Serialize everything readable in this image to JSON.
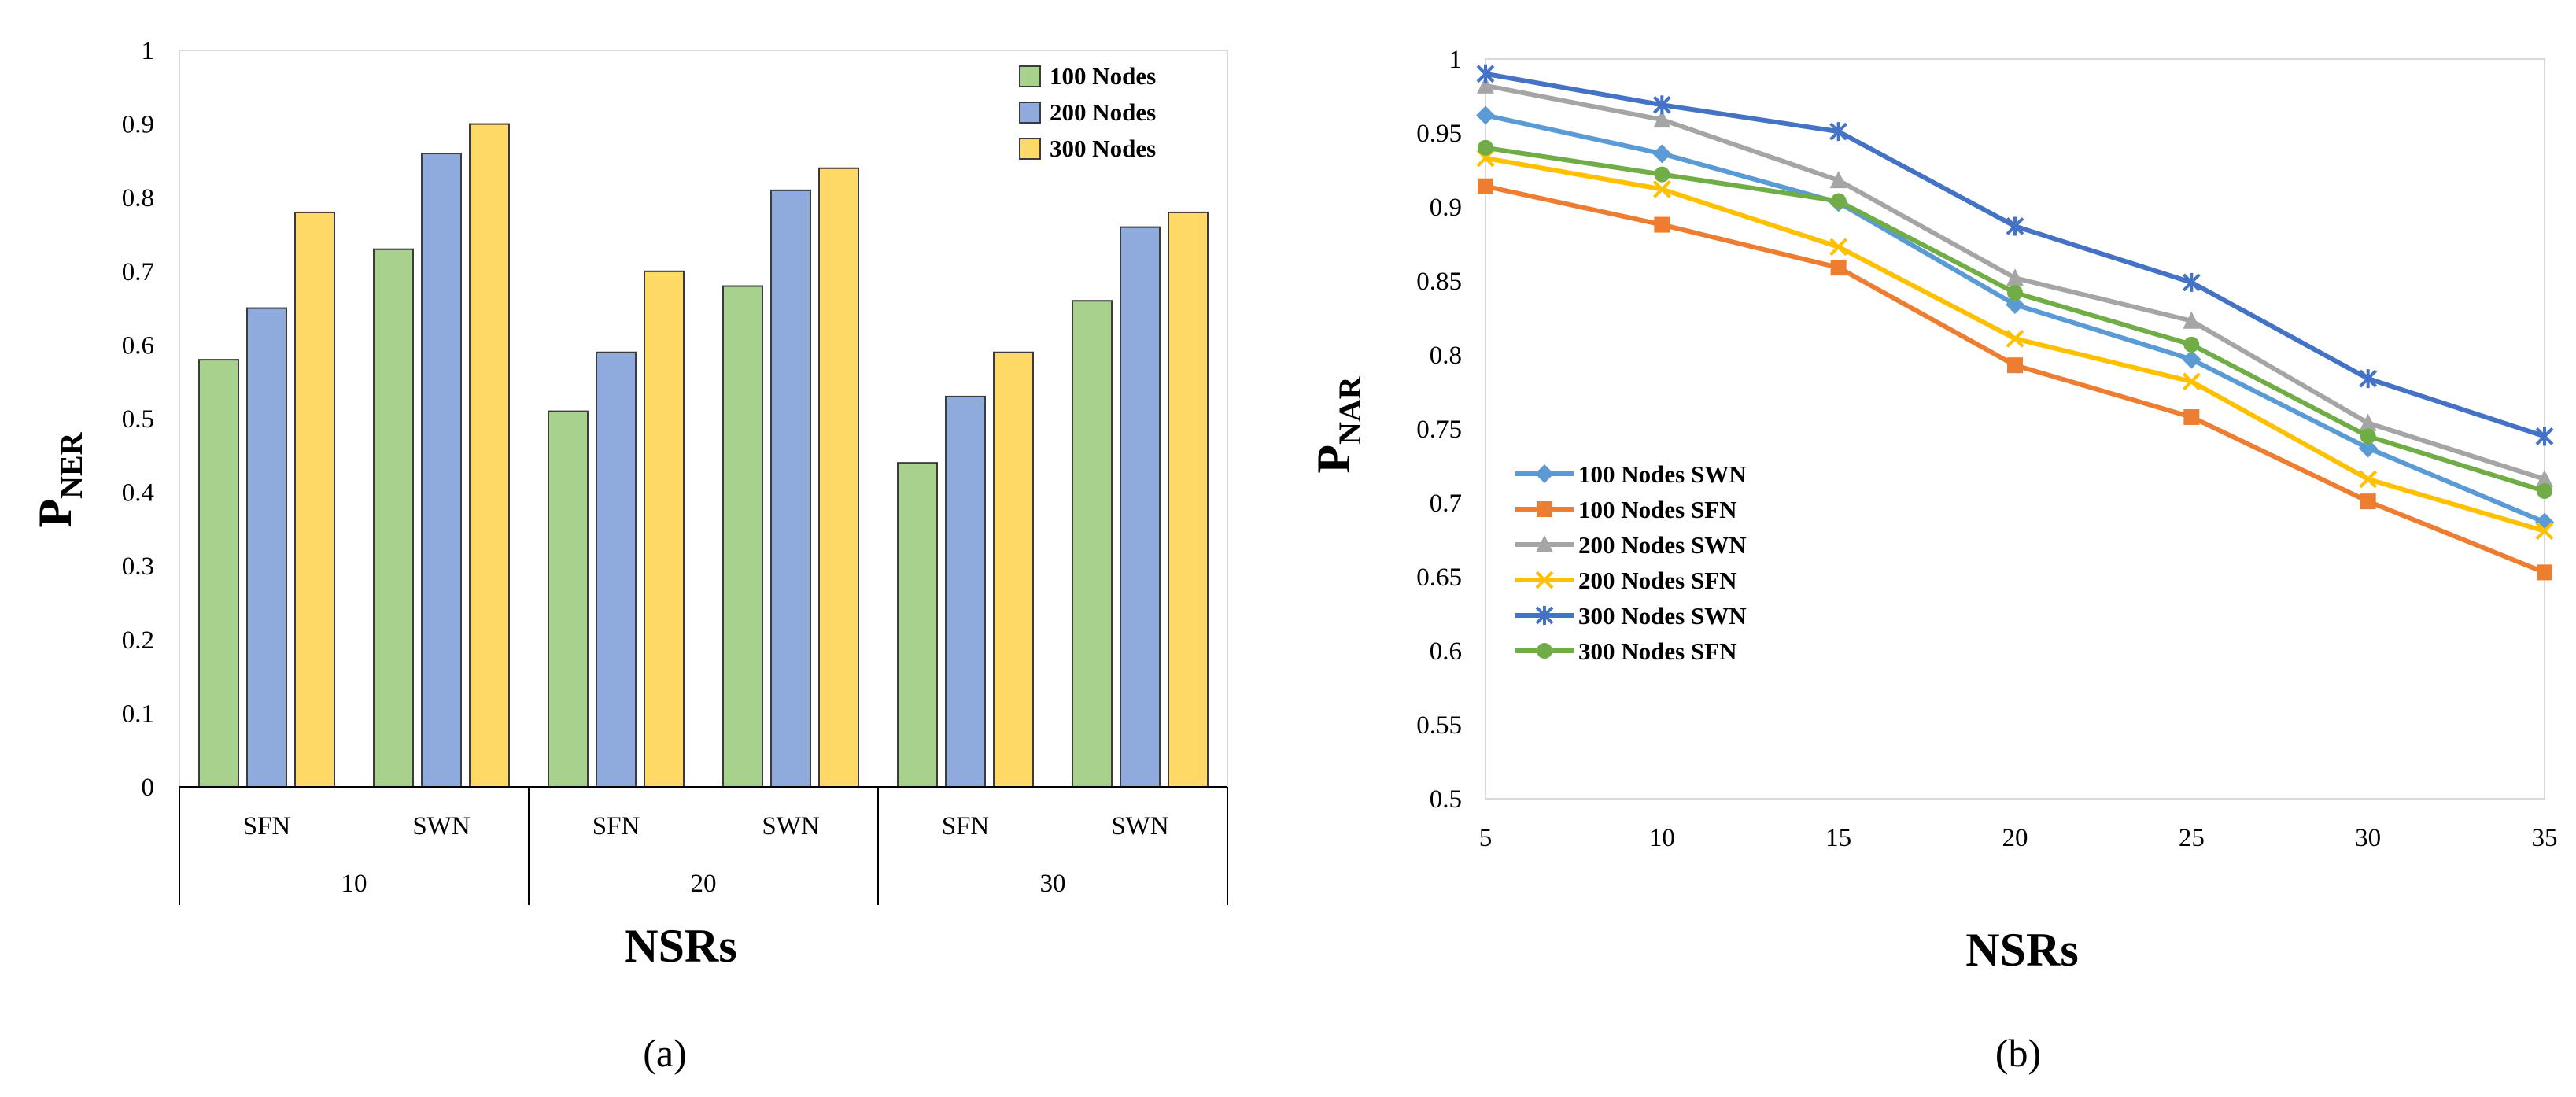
{
  "chart_data": [
    {
      "panel_label": "(a)",
      "type": "bar",
      "groups": [
        "10",
        "20",
        "30"
      ],
      "subcategories": [
        "SFN",
        "SWN",
        "SFN",
        "SWN",
        "SFN",
        "SWN"
      ],
      "series": [
        {
          "name": "100 Nodes",
          "color": "#A9D18E",
          "values": [
            0.58,
            0.73,
            0.51,
            0.68,
            0.44,
            0.66
          ]
        },
        {
          "name": "200 Nodes",
          "color": "#8FAADC",
          "values": [
            0.65,
            0.86,
            0.59,
            0.81,
            0.53,
            0.76
          ]
        },
        {
          "name": "300 Nodes",
          "color": "#FFD966",
          "values": [
            0.78,
            0.9,
            0.7,
            0.84,
            0.59,
            0.78
          ]
        }
      ],
      "ylabel_main": "P",
      "ylabel_sub": "NER",
      "xlabel": "NSRs",
      "ylim": [
        0,
        1
      ],
      "yticks": [
        "0",
        "0.1",
        "0.2",
        "0.3",
        "0.4",
        "0.5",
        "0.6",
        "0.7",
        "0.8",
        "0.9",
        "1"
      ],
      "legend_position": "top-right"
    },
    {
      "panel_label": "(b)",
      "type": "line",
      "x": [
        5,
        10,
        15,
        20,
        25,
        30,
        35
      ],
      "xticks": [
        "5",
        "10",
        "15",
        "20",
        "25",
        "30",
        "35"
      ],
      "series": [
        {
          "name": "100 Nodes SWN",
          "color": "#5B9BD5",
          "marker": "diamond",
          "values": [
            0.962,
            0.936,
            0.903,
            0.834,
            0.797,
            0.737,
            0.687
          ]
        },
        {
          "name": "100 Nodes SFN",
          "color": "#ED7D31",
          "marker": "square",
          "values": [
            0.914,
            0.888,
            0.859,
            0.793,
            0.758,
            0.701,
            0.653
          ]
        },
        {
          "name": "200 Nodes SWN",
          "color": "#A5A5A5",
          "marker": "triangle",
          "values": [
            0.982,
            0.959,
            0.918,
            0.852,
            0.823,
            0.754,
            0.716
          ]
        },
        {
          "name": "200 Nodes SFN",
          "color": "#FFC000",
          "marker": "x",
          "values": [
            0.933,
            0.912,
            0.873,
            0.811,
            0.782,
            0.716,
            0.681
          ]
        },
        {
          "name": "300 Nodes SWN",
          "color": "#4472C4",
          "marker": "star",
          "values": [
            0.99,
            0.969,
            0.951,
            0.887,
            0.849,
            0.784,
            0.745
          ]
        },
        {
          "name": "300 Nodes SFN",
          "color": "#70AD47",
          "marker": "circle",
          "values": [
            0.94,
            0.922,
            0.904,
            0.842,
            0.807,
            0.745,
            0.708
          ]
        }
      ],
      "ylabel_main": "P",
      "ylabel_sub": "NAR",
      "xlabel": "NSRs",
      "ylim": [
        0.5,
        1
      ],
      "yticks": [
        "0.5",
        "0.55",
        "0.6",
        "0.65",
        "0.7",
        "0.75",
        "0.8",
        "0.85",
        "0.9",
        "0.95",
        "1"
      ],
      "legend_position": "bottom-left"
    }
  ]
}
